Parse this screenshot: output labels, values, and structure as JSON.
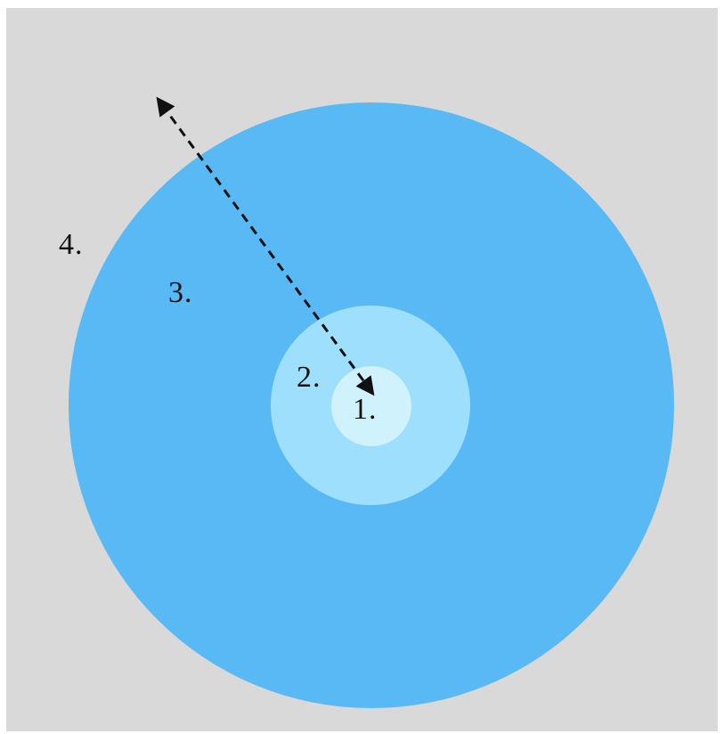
{
  "diagram": {
    "background_color": "#d9d9d9",
    "regions": [
      {
        "id": "region-1",
        "label": "1.",
        "color": "#d0f2fd"
      },
      {
        "id": "region-2",
        "label": "2.",
        "color": "#9edffd"
      },
      {
        "id": "region-3",
        "label": "3.",
        "color": "#58b9f5"
      },
      {
        "id": "region-4",
        "label": "4."
      }
    ],
    "arrow": {
      "style": "dashed",
      "heads": "both-ends",
      "color": "#111111"
    }
  }
}
